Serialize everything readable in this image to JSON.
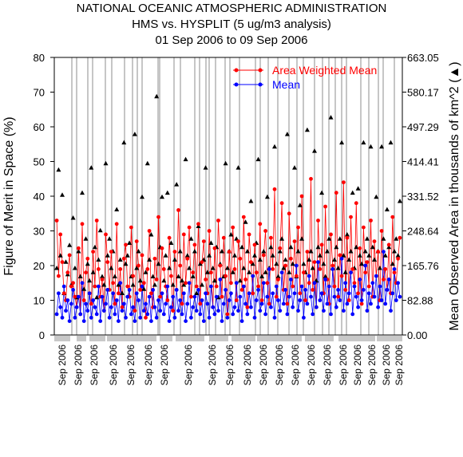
{
  "chart_data": {
    "type": "scatter",
    "title": [
      "NATIONAL OCEANIC ATMOSPHERIC ADMINISTRATION",
      "HMS vs. HYSPLIT (5 ug/m3 analysis)",
      "01 Sep 2006 to 09 Sep 2006"
    ],
    "ylabel": "Figure of Merit in Space (%)",
    "y2label": "Mean Observed Area in thousands of km^2 (▲)",
    "ylim": [
      0,
      80
    ],
    "y2lim": [
      0,
      663.05
    ],
    "yticks": [
      "0",
      "10",
      "20",
      "30",
      "40",
      "50",
      "60",
      "70",
      "80"
    ],
    "y2ticks": [
      "0.00",
      "82.88",
      "165.76",
      "248.64",
      "331.52",
      "414.41",
      "497.29",
      "580.17",
      "663.05"
    ],
    "xtick_labels": [
      "Sep 2006",
      "Sep 2006",
      "Sep 2006",
      "Sep 2006",
      "Sep 2006",
      "Sep 2006",
      "Sep 2006",
      "Sep 2006",
      "Sep 2006",
      "Sep 2006",
      "Sep 2006",
      "Sep 2006",
      "Sep 2006",
      "Sep 2006",
      "Sep 2006",
      "Sep 2006",
      "Sep 2006",
      "Sep 2006",
      "Sep 2006",
      "Sep 2006",
      "Sep 2006"
    ],
    "legend_placement": "top-right",
    "n_points": 190,
    "series": [
      {
        "name": "Area Weighted Mean",
        "color": "#ff0000",
        "marker": "circle",
        "axis": "left",
        "values": [
          33,
          17,
          29,
          21,
          12,
          10,
          18,
          23,
          14,
          15,
          11,
          8,
          25,
          6,
          32,
          10,
          18,
          22,
          12,
          9,
          24,
          14,
          33,
          19,
          11,
          16,
          7,
          29,
          21,
          13,
          24,
          15,
          9,
          32,
          12,
          19,
          8,
          22,
          26,
          14,
          11,
          31,
          17,
          7,
          27,
          20,
          13,
          23,
          15,
          5,
          19,
          30,
          12,
          8,
          22,
          16,
          34,
          11,
          25,
          19,
          14,
          10,
          28,
          17,
          7,
          24,
          13,
          36,
          20,
          9,
          29,
          15,
          22,
          31,
          11,
          18,
          26,
          14,
          32,
          9,
          21,
          27,
          16,
          12,
          30,
          18,
          8,
          25,
          14,
          33,
          20,
          11,
          28,
          17,
          6,
          24,
          15,
          31,
          19,
          10,
          27,
          22,
          13,
          34,
          16,
          8,
          29,
          21,
          12,
          26,
          18,
          14,
          32,
          10,
          23,
          30,
          15,
          9,
          28,
          19,
          42,
          11,
          16,
          25,
          38,
          13,
          20,
          9,
          35,
          22,
          14,
          27,
          17,
          31,
          12,
          40,
          18,
          10,
          24,
          15,
          45,
          13,
          21,
          8,
          33,
          19,
          26,
          12,
          37,
          16,
          9,
          29,
          20,
          14,
          41,
          11,
          23,
          17,
          44,
          13,
          28,
          10,
          34,
          19,
          15,
          38,
          12,
          25,
          9,
          31,
          18,
          21,
          14,
          33,
          11,
          27,
          17,
          24,
          10,
          30,
          16,
          19,
          13,
          26,
          12,
          34,
          18,
          15,
          22,
          28
        ]
      },
      {
        "name": "Mean",
        "color": "#0000ff",
        "marker": "circle",
        "axis": "left",
        "values": [
          6,
          12,
          8,
          5,
          14,
          7,
          10,
          4,
          9,
          13,
          5,
          8,
          11,
          6,
          15,
          4,
          9,
          7,
          12,
          5,
          10,
          8,
          6,
          14,
          4,
          11,
          7,
          9,
          13,
          5,
          8,
          12,
          6,
          10,
          4,
          15,
          7,
          9,
          5,
          11,
          13,
          6,
          8,
          4,
          12,
          10,
          5,
          14,
          7,
          9,
          6,
          11,
          4,
          13,
          8,
          5,
          10,
          7,
          12,
          6,
          9,
          14,
          4,
          8,
          11,
          5,
          13,
          7,
          10,
          6,
          12,
          4,
          9,
          15,
          5,
          8,
          11,
          7,
          13,
          6,
          10,
          4,
          12,
          9,
          5,
          14,
          8,
          6,
          11,
          7,
          16,
          4,
          9,
          13,
          5,
          10,
          12,
          6,
          8,
          15,
          7,
          11,
          4,
          14,
          9,
          6,
          12,
          8,
          17,
          5,
          10,
          13,
          7,
          9,
          15,
          6,
          11,
          19,
          8,
          12,
          5,
          14,
          10,
          7,
          18,
          9,
          13,
          6,
          11,
          16,
          8,
          12,
          20,
          7,
          10,
          14,
          5,
          13,
          9,
          17,
          11,
          6,
          15,
          8,
          21,
          10,
          12,
          7,
          16,
          9,
          14,
          6,
          19,
          11,
          8,
          13,
          10,
          22,
          7,
          15,
          9,
          12,
          18,
          6,
          14,
          11,
          8,
          16,
          10,
          13,
          20,
          7,
          12,
          9,
          15,
          11,
          17,
          8,
          14,
          10,
          24,
          9,
          13,
          16,
          7,
          12,
          19,
          10,
          15,
          11
        ]
      },
      {
        "name": "Mean Observed Area",
        "color": "#000000",
        "marker": "triangle",
        "axis": "right",
        "values": [
          160,
          395,
          190,
          335,
          100,
          175,
          145,
          215,
          120,
          280,
          160,
          90,
          200,
          140,
          340,
          110,
          230,
          170,
          130,
          400,
          150,
          210,
          90,
          180,
          250,
          140,
          120,
          410,
          190,
          230,
          160,
          200,
          140,
          300,
          120,
          180,
          100,
          460,
          170,
          190,
          220,
          140,
          120,
          480,
          160,
          200,
          130,
          330,
          110,
          150,
          410,
          180,
          240,
          140,
          120,
          570,
          170,
          210,
          330,
          130,
          190,
          340,
          160,
          220,
          120,
          180,
          360,
          140,
          200,
          130,
          120,
          420,
          190,
          160,
          230,
          140,
          200,
          100,
          260,
          170,
          120,
          180,
          400,
          150,
          190,
          220,
          160,
          130,
          210,
          90,
          170,
          200,
          140,
          410,
          160,
          200,
          240,
          150,
          190,
          230,
          400,
          130,
          210,
          160,
          270,
          200,
          150,
          320,
          170,
          190,
          220,
          420,
          180,
          140,
          200,
          150,
          330,
          160,
          210,
          190,
          450,
          170,
          140,
          200,
          230,
          160,
          180,
          480,
          150,
          210,
          170,
          400,
          140,
          200,
          310,
          230,
          170,
          150,
          490,
          180,
          200,
          160,
          440,
          130,
          210,
          190,
          340,
          170,
          140,
          200,
          230,
          520,
          160,
          180,
          210,
          160,
          230,
          460,
          190,
          150,
          240,
          180,
          200,
          340,
          160,
          210,
          350,
          190,
          170,
          460,
          200,
          230,
          190,
          450,
          210,
          180,
          330,
          200,
          160,
          450,
          230,
          190,
          300,
          210,
          460,
          170,
          200,
          230,
          190,
          320
        ]
      }
    ]
  }
}
